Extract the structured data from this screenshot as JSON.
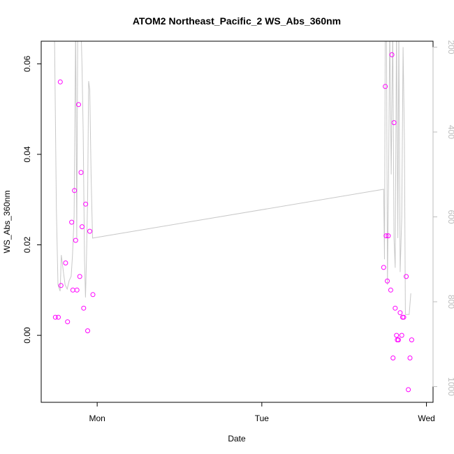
{
  "chart_data": {
    "type": "scatter",
    "title": "ATOM2 Northeast_Pacific_2 WS_Abs_360nm",
    "xlabel": "Date",
    "ylabel": "WS_Abs_360nm",
    "x_unit": "days since Mon 00:00",
    "x_tick_labels": [
      {
        "x": 0,
        "label": "Mon"
      },
      {
        "x": 1,
        "label": "Tue"
      },
      {
        "x": 2,
        "label": "Wed"
      }
    ],
    "xlim": [
      -0.34,
      2.04
    ],
    "ylim": [
      -0.0148,
      0.065
    ],
    "y_ticks": [
      0.0,
      0.02,
      0.04,
      0.06
    ],
    "y_tick_labels": [
      "0.00",
      "0.02",
      "0.04",
      "0.06"
    ],
    "right_axis": {
      "ylim": [
        1037,
        186
      ],
      "ticks": [
        200,
        400,
        600,
        800,
        1000
      ],
      "color": "#bdbdbd"
    },
    "colors": {
      "points": "#ff00ff",
      "depth_line": "#c8c8c8"
    },
    "series": [
      {
        "type": "scatter",
        "points": [
          {
            "x": -0.254,
            "y": 0.004
          },
          {
            "x": -0.236,
            "y": 0.004
          },
          {
            "x": -0.224,
            "y": 0.056
          },
          {
            "x": -0.22,
            "y": 0.011
          },
          {
            "x": -0.192,
            "y": 0.016
          },
          {
            "x": -0.18,
            "y": 0.003
          },
          {
            "x": -0.155,
            "y": 0.025
          },
          {
            "x": -0.148,
            "y": 0.01
          },
          {
            "x": -0.138,
            "y": 0.032
          },
          {
            "x": -0.131,
            "y": 0.021
          },
          {
            "x": -0.123,
            "y": 0.01
          },
          {
            "x": -0.113,
            "y": 0.051
          },
          {
            "x": -0.106,
            "y": 0.013
          },
          {
            "x": -0.098,
            "y": 0.036
          },
          {
            "x": -0.092,
            "y": 0.024
          },
          {
            "x": -0.082,
            "y": 0.006
          },
          {
            "x": -0.07,
            "y": 0.029
          },
          {
            "x": -0.058,
            "y": 0.001
          },
          {
            "x": -0.045,
            "y": 0.023
          },
          {
            "x": -0.026,
            "y": 0.009
          },
          {
            "x": 1.74,
            "y": 0.015
          },
          {
            "x": 1.75,
            "y": 0.055
          },
          {
            "x": 1.755,
            "y": 0.022
          },
          {
            "x": 1.762,
            "y": 0.012
          },
          {
            "x": 1.768,
            "y": 0.022
          },
          {
            "x": 1.783,
            "y": 0.01
          },
          {
            "x": 1.79,
            "y": 0.062
          },
          {
            "x": 1.797,
            "y": -0.005
          },
          {
            "x": 1.803,
            "y": 0.047
          },
          {
            "x": 1.81,
            "y": 0.006
          },
          {
            "x": 1.818,
            "y": 0.0
          },
          {
            "x": 1.823,
            "y": -0.001
          },
          {
            "x": 1.83,
            "y": -0.001
          },
          {
            "x": 1.84,
            "y": 0.005
          },
          {
            "x": 1.85,
            "y": 0.0
          },
          {
            "x": 1.855,
            "y": 0.004
          },
          {
            "x": 1.862,
            "y": 0.004
          },
          {
            "x": 1.877,
            "y": 0.013
          },
          {
            "x": 1.89,
            "y": -0.012
          },
          {
            "x": 1.9,
            "y": -0.005
          },
          {
            "x": 1.91,
            "y": -0.001
          }
        ]
      },
      {
        "type": "line",
        "axis": "right",
        "points": [
          {
            "x": -0.26,
            "y": 150
          },
          {
            "x": -0.248,
            "y": 580
          },
          {
            "x": -0.238,
            "y": 760
          },
          {
            "x": -0.225,
            "y": 775
          },
          {
            "x": -0.218,
            "y": 690
          },
          {
            "x": -0.205,
            "y": 730
          },
          {
            "x": -0.195,
            "y": 760
          },
          {
            "x": -0.182,
            "y": 770
          },
          {
            "x": -0.17,
            "y": 750
          },
          {
            "x": -0.158,
            "y": 740
          },
          {
            "x": -0.15,
            "y": 690
          },
          {
            "x": -0.14,
            "y": 600
          },
          {
            "x": -0.131,
            "y": 150
          },
          {
            "x": -0.124,
            "y": 650
          },
          {
            "x": -0.118,
            "y": 150
          },
          {
            "x": -0.106,
            "y": 150
          },
          {
            "x": -0.098,
            "y": 150
          },
          {
            "x": -0.092,
            "y": 250
          },
          {
            "x": -0.085,
            "y": 400
          },
          {
            "x": -0.077,
            "y": 700
          },
          {
            "x": -0.071,
            "y": 790
          },
          {
            "x": -0.065,
            "y": 700
          },
          {
            "x": -0.058,
            "y": 550
          },
          {
            "x": -0.052,
            "y": 280
          },
          {
            "x": -0.045,
            "y": 300
          },
          {
            "x": -0.037,
            "y": 500
          },
          {
            "x": -0.028,
            "y": 650
          },
          {
            "x": 1.74,
            "y": 535
          },
          {
            "x": 1.745,
            "y": 700
          },
          {
            "x": 1.75,
            "y": 150
          },
          {
            "x": 1.757,
            "y": 150
          },
          {
            "x": 1.763,
            "y": 760
          },
          {
            "x": 1.77,
            "y": 500
          },
          {
            "x": 1.777,
            "y": 150
          },
          {
            "x": 1.786,
            "y": 500
          },
          {
            "x": 1.795,
            "y": 150
          },
          {
            "x": 1.803,
            "y": 650
          },
          {
            "x": 1.81,
            "y": 720
          },
          {
            "x": 1.818,
            "y": 150
          },
          {
            "x": 1.826,
            "y": 650
          },
          {
            "x": 1.832,
            "y": 150
          },
          {
            "x": 1.84,
            "y": 730
          },
          {
            "x": 1.85,
            "y": 600
          },
          {
            "x": 1.858,
            "y": 200
          },
          {
            "x": 1.866,
            "y": 420
          },
          {
            "x": 1.872,
            "y": 830
          },
          {
            "x": 1.885,
            "y": 830
          },
          {
            "x": 1.895,
            "y": 830
          },
          {
            "x": 1.905,
            "y": 780
          }
        ]
      }
    ]
  }
}
